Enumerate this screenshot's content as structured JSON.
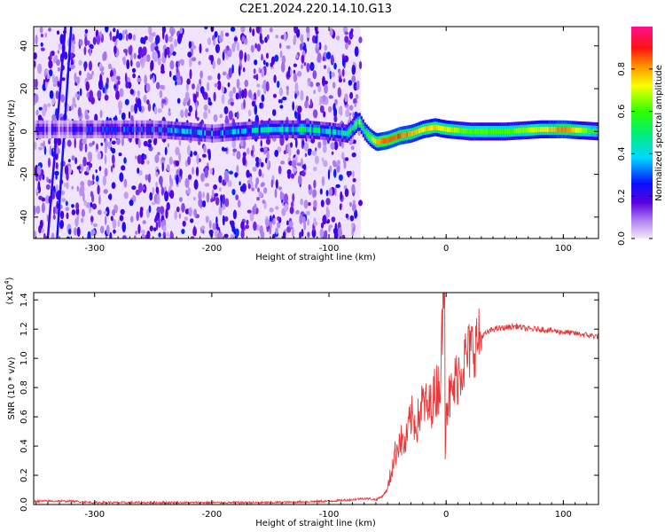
{
  "title": "C2E1.2024.220.14.10.G13",
  "colors": {
    "snr_line": "#e8393a",
    "axis": "#000000",
    "background": "#ffffff"
  },
  "chart_data": [
    {
      "type": "heatmap",
      "xlabel": "Height of straight line (km)",
      "ylabel": "Frequency (Hz)",
      "xlim": [
        -352,
        130
      ],
      "ylim": [
        -50,
        49
      ],
      "x_ticks": [
        "-300",
        "-200",
        "-100",
        "0",
        "100"
      ],
      "x_tick_values": [
        -300,
        -200,
        -100,
        0,
        100
      ],
      "y_ticks": [
        "-40",
        "-20",
        "0",
        "20",
        "40"
      ],
      "y_tick_values": [
        -40,
        -20,
        0,
        20,
        40
      ],
      "colorbar": {
        "label": "Normalized spectral amplitude",
        "range": [
          0.0,
          1.0
        ],
        "ticks": [
          "0.0",
          "0.2",
          "0.4",
          "0.6",
          "0.8"
        ],
        "tick_values": [
          0.0,
          0.2,
          0.4,
          0.6,
          0.8
        ],
        "colormap": "rainbow (magenta-white low, violet, blue, cyan, green, yellow, orange, red, magenta high)"
      },
      "noise_region_x": [
        -352,
        -73
      ],
      "signal_ridge": {
        "x": [
          -352,
          -300,
          -250,
          -220,
          -200,
          -180,
          -150,
          -120,
          -100,
          -85,
          -75,
          -70,
          -65,
          -60,
          -50,
          -40,
          -30,
          -20,
          -10,
          0,
          20,
          50,
          80,
          100,
          130
        ],
        "freq_hz": [
          1,
          1,
          1,
          0,
          -1,
          0,
          1,
          1,
          0,
          -1,
          5,
          0,
          -3,
          -5,
          -4,
          -2,
          -1,
          1,
          2,
          1,
          0,
          0,
          1,
          1,
          0
        ],
        "amplitude": [
          0.15,
          0.2,
          0.25,
          0.35,
          0.3,
          0.35,
          0.4,
          0.45,
          0.4,
          0.5,
          0.6,
          0.5,
          0.65,
          0.8,
          0.85,
          0.85,
          0.8,
          0.75,
          0.75,
          0.7,
          0.6,
          0.6,
          0.7,
          0.85,
          0.5
        ]
      }
    },
    {
      "type": "line",
      "xlabel": "Height of straight line (km)",
      "ylabel": "SNR (10 * v/v)",
      "scale_label": "(x10^4)",
      "xlim": [
        -352,
        130
      ],
      "ylim": [
        0.0,
        1.45
      ],
      "x_ticks": [
        "-300",
        "-200",
        "-100",
        "0",
        "100"
      ],
      "x_tick_values": [
        -300,
        -200,
        -100,
        0,
        100
      ],
      "y_ticks": [
        "0.0",
        "0.2",
        "0.4",
        "0.6",
        "0.8",
        "1.0",
        "1.2",
        "1.4"
      ],
      "y_tick_values": [
        0.0,
        0.2,
        0.4,
        0.6,
        0.8,
        1.0,
        1.2,
        1.4
      ],
      "series": [
        {
          "color": "#e8393a",
          "x": [
            -352,
            -320,
            -300,
            -250,
            -200,
            -150,
            -100,
            -80,
            -70,
            -60,
            -55,
            -50,
            -45,
            -40,
            -35,
            -30,
            -25,
            -20,
            -15,
            -10,
            -5,
            -2,
            -1,
            0,
            5,
            10,
            20,
            30,
            40,
            50,
            60,
            70,
            80,
            90,
            100,
            110,
            120,
            130
          ],
          "y": [
            0.02,
            0.02,
            0.01,
            0.01,
            0.01,
            0.01,
            0.02,
            0.03,
            0.04,
            0.03,
            0.05,
            0.1,
            0.3,
            0.45,
            0.4,
            0.6,
            0.55,
            0.7,
            0.65,
            0.75,
            0.85,
            1.48,
            0.35,
            0.7,
            0.75,
            0.9,
            1.05,
            1.15,
            1.2,
            1.21,
            1.22,
            1.2,
            1.2,
            1.19,
            1.18,
            1.17,
            1.16,
            1.15
          ]
        }
      ]
    }
  ]
}
